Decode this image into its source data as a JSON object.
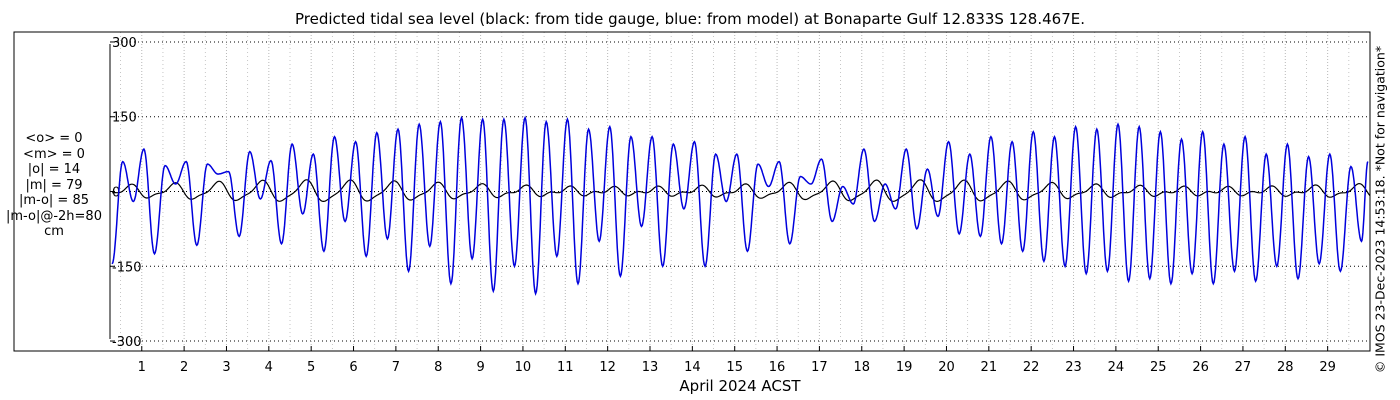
{
  "title": "Predicted tidal sea level (black: from tide gauge, blue: from model) at Bonaparte Gulf 12.833S 128.467E.",
  "stats": [
    "<o> = 0",
    "<m> = 0",
    "|o| = 14",
    "|m| = 79",
    "|m-o| = 85",
    "|m-o|@-2h=80",
    "cm"
  ],
  "credit": "© IMOS 23-Dec-2023 14:53:18. *Not for navigation*",
  "colors": {
    "model": "#0000dd",
    "gauge": "#000000",
    "grid": "#b8b8b8"
  },
  "chart_data": {
    "type": "line",
    "title": "Predicted tidal sea level (black: from tide gauge, blue: from model) at Bonaparte Gulf 12.833S 128.467E.",
    "xlabel": "April 2024 ACST",
    "ylabel": "",
    "xlim": [
      0.25,
      30.0
    ],
    "ylim": [
      -320,
      320
    ],
    "yticks": [
      -300,
      -150,
      0,
      150,
      300
    ],
    "ytick_labels": [
      "-300",
      "-150",
      "0",
      "150",
      "300"
    ],
    "xticks": [
      1,
      2,
      3,
      4,
      5,
      6,
      7,
      8,
      9,
      10,
      11,
      12,
      13,
      14,
      15,
      16,
      17,
      18,
      19,
      20,
      21,
      22,
      23,
      24,
      25,
      26,
      27,
      28,
      29
    ],
    "xtick_labels": [
      "1",
      "2",
      "3",
      "4",
      "5",
      "6",
      "7",
      "8",
      "9",
      "10",
      "11",
      "12",
      "13",
      "14",
      "15",
      "16",
      "17",
      "18",
      "19",
      "20",
      "21",
      "22",
      "23",
      "24",
      "25",
      "26",
      "27",
      "28",
      "29"
    ],
    "grid": true,
    "series": [
      {
        "name": "model",
        "color": "#0000dd",
        "extrema": [
          [
            0.3,
            -145
          ],
          [
            0.55,
            60
          ],
          [
            0.8,
            -20
          ],
          [
            1.05,
            85
          ],
          [
            1.3,
            -125
          ],
          [
            1.55,
            52
          ],
          [
            1.8,
            15
          ],
          [
            2.05,
            60
          ],
          [
            2.3,
            -108
          ],
          [
            2.55,
            55
          ],
          [
            2.8,
            35
          ],
          [
            3.05,
            40
          ],
          [
            3.3,
            -90
          ],
          [
            3.55,
            80
          ],
          [
            3.8,
            -15
          ],
          [
            4.05,
            62
          ],
          [
            4.3,
            -105
          ],
          [
            4.55,
            95
          ],
          [
            4.8,
            -45
          ],
          [
            5.05,
            75
          ],
          [
            5.3,
            -120
          ],
          [
            5.55,
            110
          ],
          [
            5.8,
            -60
          ],
          [
            6.05,
            100
          ],
          [
            6.3,
            -130
          ],
          [
            6.55,
            118
          ],
          [
            6.8,
            -95
          ],
          [
            7.05,
            125
          ],
          [
            7.3,
            -160
          ],
          [
            7.55,
            135
          ],
          [
            7.8,
            -110
          ],
          [
            8.05,
            140
          ],
          [
            8.3,
            -185
          ],
          [
            8.55,
            148
          ],
          [
            8.8,
            -135
          ],
          [
            9.05,
            145
          ],
          [
            9.3,
            -200
          ],
          [
            9.55,
            145
          ],
          [
            9.8,
            -150
          ],
          [
            10.05,
            148
          ],
          [
            10.3,
            -205
          ],
          [
            10.55,
            140
          ],
          [
            10.8,
            -130
          ],
          [
            11.05,
            145
          ],
          [
            11.3,
            -185
          ],
          [
            11.55,
            125
          ],
          [
            11.8,
            -100
          ],
          [
            12.05,
            130
          ],
          [
            12.3,
            -170
          ],
          [
            12.55,
            110
          ],
          [
            12.8,
            -70
          ],
          [
            13.05,
            110
          ],
          [
            13.3,
            -150
          ],
          [
            13.55,
            95
          ],
          [
            13.8,
            -35
          ],
          [
            14.05,
            100
          ],
          [
            14.3,
            -150
          ],
          [
            14.55,
            75
          ],
          [
            14.8,
            -20
          ],
          [
            15.05,
            75
          ],
          [
            15.3,
            -120
          ],
          [
            15.55,
            55
          ],
          [
            15.8,
            10
          ],
          [
            16.05,
            60
          ],
          [
            16.3,
            -105
          ],
          [
            16.55,
            30
          ],
          [
            16.8,
            15
          ],
          [
            17.05,
            65
          ],
          [
            17.3,
            -60
          ],
          [
            17.55,
            10
          ],
          [
            17.8,
            -25
          ],
          [
            18.05,
            85
          ],
          [
            18.3,
            -60
          ],
          [
            18.55,
            15
          ],
          [
            18.8,
            -35
          ],
          [
            19.05,
            85
          ],
          [
            19.3,
            -75
          ],
          [
            19.55,
            45
          ],
          [
            19.8,
            -50
          ],
          [
            20.05,
            100
          ],
          [
            20.3,
            -85
          ],
          [
            20.55,
            75
          ],
          [
            20.8,
            -90
          ],
          [
            21.05,
            110
          ],
          [
            21.3,
            -105
          ],
          [
            21.55,
            100
          ],
          [
            21.8,
            -120
          ],
          [
            22.05,
            120
          ],
          [
            22.3,
            -140
          ],
          [
            22.55,
            110
          ],
          [
            22.8,
            -150
          ],
          [
            23.05,
            130
          ],
          [
            23.3,
            -165
          ],
          [
            23.55,
            125
          ],
          [
            23.8,
            -160
          ],
          [
            24.05,
            135
          ],
          [
            24.3,
            -180
          ],
          [
            24.55,
            130
          ],
          [
            24.8,
            -175
          ],
          [
            25.05,
            120
          ],
          [
            25.3,
            -185
          ],
          [
            25.55,
            105
          ],
          [
            25.8,
            -165
          ],
          [
            26.05,
            120
          ],
          [
            26.3,
            -185
          ],
          [
            26.55,
            95
          ],
          [
            26.8,
            -160
          ],
          [
            27.05,
            110
          ],
          [
            27.3,
            -180
          ],
          [
            27.55,
            75
          ],
          [
            27.8,
            -150
          ],
          [
            28.05,
            95
          ],
          [
            28.3,
            -175
          ],
          [
            28.55,
            70
          ],
          [
            28.8,
            -145
          ],
          [
            29.05,
            75
          ],
          [
            29.3,
            -160
          ],
          [
            29.55,
            50
          ],
          [
            29.8,
            -100
          ],
          [
            29.95,
            60
          ]
        ]
      },
      {
        "name": "gauge",
        "color": "#000000",
        "mean": 0,
        "mean_abs": 14
      }
    ]
  }
}
